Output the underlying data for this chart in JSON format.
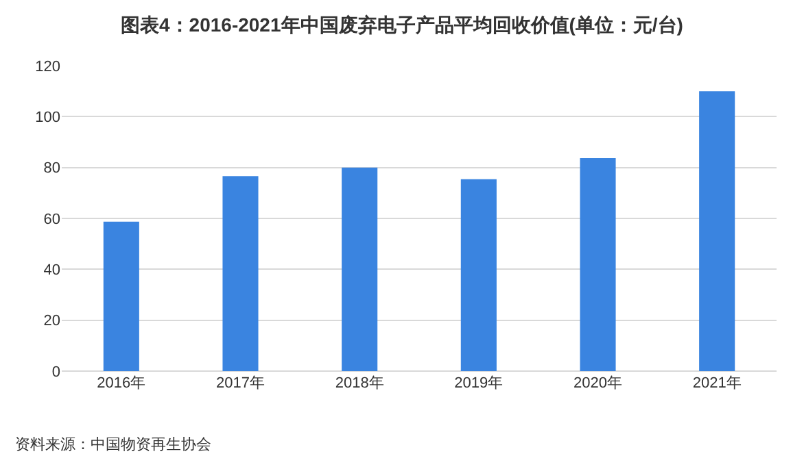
{
  "chart_data": {
    "type": "bar",
    "title": "图表4：2016-2021年中国废弃电子产品平均回收价值(单位：元/台)",
    "categories": [
      "2016年",
      "2017年",
      "2018年",
      "2019年",
      "2020年",
      "2021年"
    ],
    "values": [
      58.7,
      76.6,
      80,
      75.4,
      83.7,
      110
    ],
    "color": "#3a84e0",
    "ylim": [
      0,
      120
    ],
    "yticks": [
      0,
      20,
      40,
      60,
      80,
      100,
      120
    ],
    "grid": "y",
    "annotations": [
      "资料来源：中国物资再生协会"
    ]
  }
}
